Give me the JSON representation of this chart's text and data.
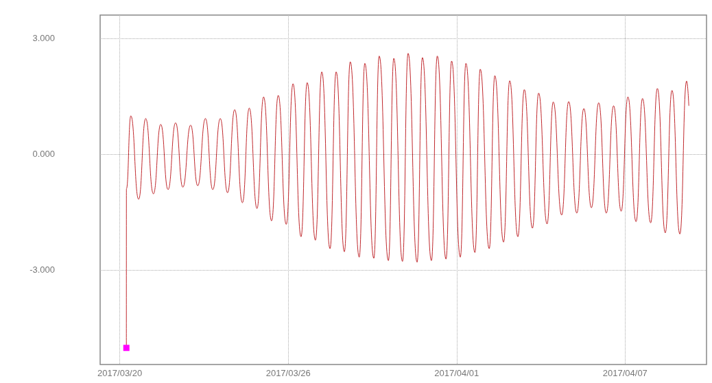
{
  "chart_data": {
    "type": "line",
    "xlim": [
      "2017-03-19T07:12",
      "2017-04-09T21:36"
    ],
    "ylim": [
      -5.45,
      3.6
    ],
    "xticks": [
      {
        "value": "2017-03-20",
        "label": "2017/03/20"
      },
      {
        "value": "2017-03-26",
        "label": "2017/03/26"
      },
      {
        "value": "2017-04-01",
        "label": "2017/04/01"
      },
      {
        "value": "2017-04-07",
        "label": "2017/04/07"
      }
    ],
    "yticks": [
      {
        "value": 3,
        "label": "3.000"
      },
      {
        "value": 0,
        "label": "0.000"
      },
      {
        "value": -3,
        "label": "-3.000"
      }
    ],
    "grid": true,
    "marker": "none",
    "line_style": "solid",
    "series": [
      {
        "color": "#c0282d",
        "x": [
          "2017-03-20T05:37",
          "2017-03-20T05:40",
          "2017-03-20T09:26",
          "2017-03-20T16:06",
          "2017-03-20T22:08",
          "2017-03-21T04:45",
          "2017-03-21T11:01",
          "2017-03-21T17:15",
          "2017-03-21T23:43",
          "2017-03-22T05:54",
          "2017-03-22T12:34",
          "2017-03-22T18:37",
          "2017-03-23T01:13",
          "2017-03-23T07:29",
          "2017-03-23T13:55",
          "2017-03-23T20:08",
          "2017-03-24T02:14",
          "2017-03-24T08:50",
          "2017-03-24T14:41",
          "2017-03-24T21:19",
          "2017-03-25T02:56",
          "2017-03-25T09:46",
          "2017-03-25T15:27",
          "2017-03-25T22:18",
          "2017-03-26T04:06",
          "2017-03-26T10:57",
          "2017-03-26T16:13",
          "2017-03-26T23:14",
          "2017-03-27T04:41",
          "2017-03-27T11:43",
          "2017-03-27T16:58",
          "2017-03-28T00:00",
          "2017-03-28T05:02",
          "2017-03-28T12:42",
          "2017-03-28T17:30",
          "2017-03-29T01:11",
          "2017-03-29T05:47",
          "2017-03-29T13:38",
          "2017-03-29T18:16",
          "2017-03-30T01:41",
          "2017-03-30T06:29",
          "2017-03-30T14:10",
          "2017-03-30T18:43",
          "2017-03-31T02:24",
          "2017-03-31T07:26",
          "2017-03-31T14:53",
          "2017-03-31T19:41",
          "2017-04-01T03:07",
          "2017-04-01T07:55",
          "2017-04-01T15:36",
          "2017-04-01T20:10",
          "2017-04-02T03:50",
          "2017-04-02T08:38",
          "2017-04-02T16:05",
          "2017-04-02T21:22",
          "2017-04-03T04:19",
          "2017-04-03T09:50",
          "2017-04-03T16:48",
          "2017-04-03T22:05",
          "2017-04-04T05:17",
          "2017-04-04T10:34",
          "2017-04-04T17:46",
          "2017-04-04T23:46",
          "2017-04-05T06:43",
          "2017-04-05T12:43",
          "2017-04-05T19:12",
          "2017-04-06T01:26",
          "2017-04-06T07:55",
          "2017-04-06T14:10",
          "2017-04-06T20:38",
          "2017-04-07T02:24",
          "2017-04-07T09:22",
          "2017-04-07T14:53",
          "2017-04-07T21:50",
          "2017-04-08T03:36",
          "2017-04-08T10:19",
          "2017-04-08T16:05",
          "2017-04-08T22:48",
          "2017-04-09T04:34",
          "2017-04-09T06:29"
        ],
        "values": [
          -5.02,
          -0.9,
          0.99,
          -1.17,
          0.92,
          -1.03,
          0.77,
          -0.92,
          0.81,
          -0.86,
          0.75,
          -0.82,
          0.92,
          -0.92,
          0.92,
          -1.0,
          1.15,
          -1.26,
          1.19,
          -1.41,
          1.48,
          -1.73,
          1.52,
          -1.82,
          1.82,
          -2.14,
          1.85,
          -2.23,
          2.13,
          -2.45,
          2.13,
          -2.53,
          2.39,
          -2.67,
          2.35,
          -2.7,
          2.54,
          -2.76,
          2.48,
          -2.78,
          2.61,
          -2.8,
          2.5,
          -2.76,
          2.54,
          -2.72,
          2.41,
          -2.67,
          2.35,
          -2.55,
          2.2,
          -2.45,
          2.03,
          -2.28,
          1.9,
          -2.14,
          1.67,
          -1.92,
          1.58,
          -1.81,
          1.35,
          -1.58,
          1.36,
          -1.53,
          1.18,
          -1.39,
          1.33,
          -1.53,
          1.25,
          -1.48,
          1.48,
          -1.75,
          1.44,
          -1.78,
          1.7,
          -2.04,
          1.65,
          -2.07,
          1.89,
          1.25
        ]
      },
      {
        "type": "scatter",
        "color": "#ff00ff",
        "marker": "square",
        "x": [
          "2017-03-20T05:37"
        ],
        "values": [
          -5.02
        ]
      }
    ]
  }
}
